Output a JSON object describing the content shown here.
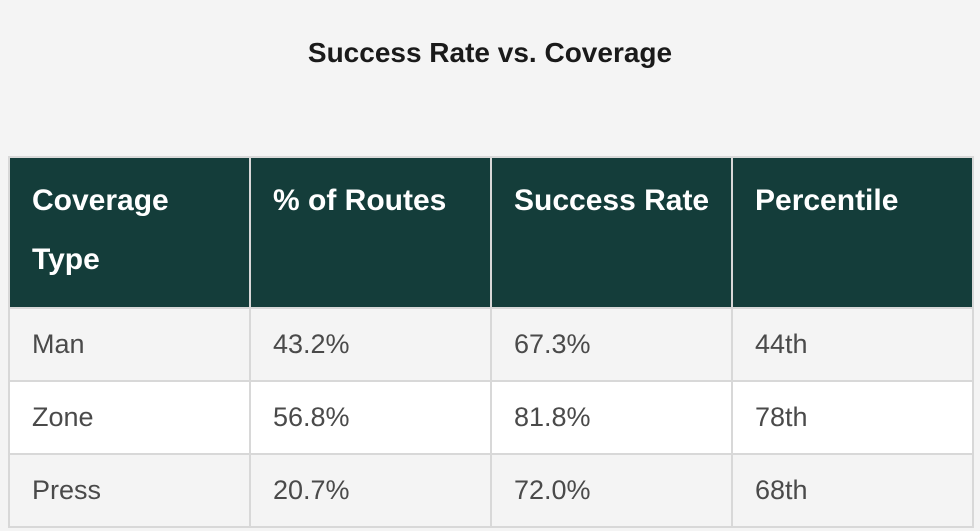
{
  "title": "Success Rate vs. Coverage",
  "table": {
    "headers": [
      "Coverage Type",
      "% of Routes",
      "Success Rate",
      "Percentile"
    ],
    "rows": [
      [
        "Man",
        "43.2%",
        "67.3%",
        "44th"
      ],
      [
        "Zone",
        "56.8%",
        "81.8%",
        "78th"
      ],
      [
        "Press",
        "20.7%",
        "72.0%",
        "68th"
      ]
    ]
  },
  "colors": {
    "header_bg": "#143d3a",
    "header_text": "#ffffff",
    "row_alt_bg": "#f4f4f4",
    "row_bg": "#ffffff"
  }
}
